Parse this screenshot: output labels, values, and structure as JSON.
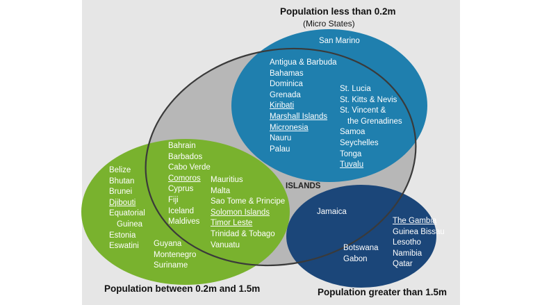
{
  "captions": {
    "micro_title": "Population less than 0.2m",
    "micro_subtitle": "(Micro States)",
    "mid_title": "Population between 0.2m and 1.5m",
    "large_title": "Population greater than 1.5m",
    "islands_label": "ISLANDS"
  },
  "micro": {
    "top": "San Marino",
    "col1": [
      {
        "name": "Antigua & Barbuda"
      },
      {
        "name": "Bahamas"
      },
      {
        "name": "Dominica"
      },
      {
        "name": "Grenada"
      },
      {
        "name": "Kiribati",
        "underlined": true
      },
      {
        "name": "Marshall Islands",
        "underlined": true
      },
      {
        "name": "Micronesia",
        "underlined": true
      },
      {
        "name": "Nauru"
      },
      {
        "name": "Palau"
      }
    ],
    "col2": [
      {
        "name": "St. Lucia"
      },
      {
        "name": "St. Kitts & Nevis"
      },
      {
        "name": "St. Vincent &"
      },
      {
        "name": "the Grenadines",
        "indent": true
      },
      {
        "name": "Samoa"
      },
      {
        "name": "Seychelles"
      },
      {
        "name": "Tonga"
      },
      {
        "name": "Tuvalu",
        "underlined": true
      }
    ]
  },
  "mid": {
    "outside": [
      {
        "name": "Belize"
      },
      {
        "name": "Bhutan"
      },
      {
        "name": "Brunei"
      },
      {
        "name": "Djibouti",
        "underlined": true
      },
      {
        "name": "Equatorial"
      },
      {
        "name": "Guinea",
        "indent": true
      },
      {
        "name": "Estonia"
      },
      {
        "name": "Eswatini"
      }
    ],
    "islands_col1": [
      {
        "name": "Bahrain"
      },
      {
        "name": "Barbados"
      },
      {
        "name": "Cabo Verde"
      },
      {
        "name": "Comoros",
        "underlined": true
      },
      {
        "name": "Cyprus"
      },
      {
        "name": "Fiji"
      },
      {
        "name": "Iceland"
      },
      {
        "name": "Maldives"
      }
    ],
    "islands_col2": [
      {
        "name": "Mauritius"
      },
      {
        "name": "Malta"
      },
      {
        "name": "Sao Tome &  Principe"
      },
      {
        "name": "Solomon Islands",
        "underlined": true
      },
      {
        "name": "Timor Leste",
        "underlined": true
      },
      {
        "name": "Trinidad & Tobago"
      },
      {
        "name": "Vanuatu"
      }
    ],
    "bottom": [
      {
        "name": "Guyana"
      },
      {
        "name": "Montenegro"
      },
      {
        "name": "Suriname"
      }
    ]
  },
  "large": {
    "islands": "Jamaica",
    "col1": [
      {
        "name": "Botswana"
      },
      {
        "name": "Gabon"
      }
    ],
    "col2": [
      {
        "name": "The Gambia",
        "underlined": true
      },
      {
        "name": "Guinea Bissau"
      },
      {
        "name": "Lesotho"
      },
      {
        "name": "Namibia"
      },
      {
        "name": "Qatar"
      }
    ]
  },
  "colors": {
    "micro_fill": "#1f7fae",
    "mid_fill": "#79b22e",
    "large_fill": "#1b4679",
    "islands_fill": "#b7b7b7",
    "islands_stroke": "#3a3a3a",
    "background": "#e6e6e6"
  }
}
